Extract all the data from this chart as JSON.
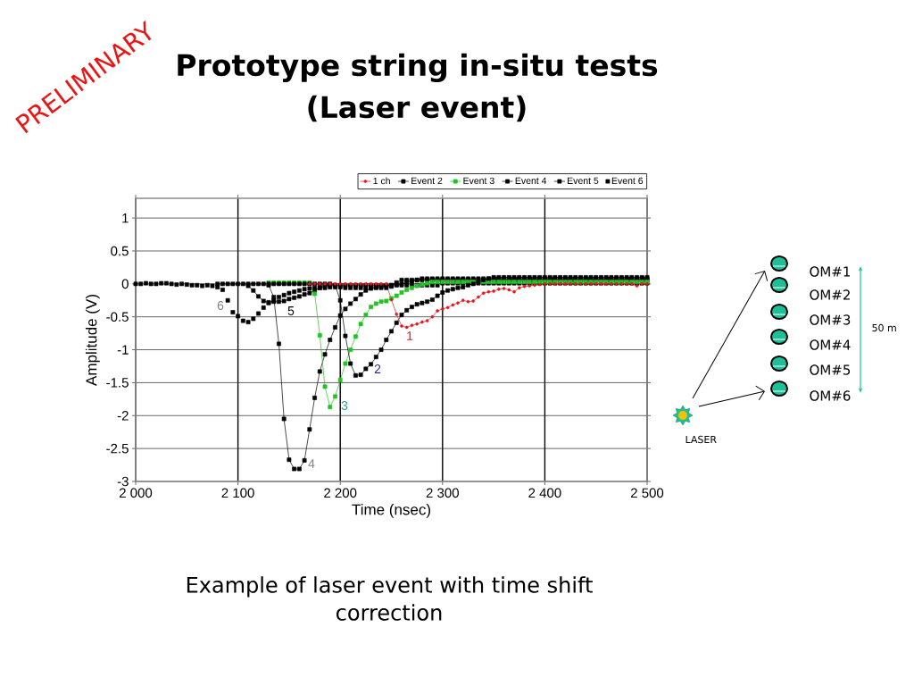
{
  "chart_data": {
    "type": "line",
    "title": "Prototype string in-situ tests (Laser event)",
    "xlabel": "Time (nsec)",
    "ylabel": "Amplitude (V)",
    "x": [
      2000,
      2005,
      2010,
      2015,
      2020,
      2025,
      2030,
      2035,
      2040,
      2045,
      2050,
      2055,
      2060,
      2065,
      2070,
      2075,
      2080,
      2085,
      2090,
      2095,
      2100,
      2105,
      2110,
      2115,
      2120,
      2125,
      2130,
      2135,
      2140,
      2145,
      2150,
      2155,
      2160,
      2165,
      2170,
      2175,
      2180,
      2185,
      2190,
      2195,
      2200,
      2205,
      2210,
      2215,
      2220,
      2225,
      2230,
      2235,
      2240,
      2245,
      2250,
      2255,
      2260,
      2265,
      2270,
      2275,
      2280,
      2285,
      2290,
      2295,
      2300,
      2305,
      2310,
      2315,
      2320,
      2325,
      2330,
      2335,
      2340,
      2345,
      2350,
      2355,
      2360,
      2365,
      2370,
      2375,
      2380,
      2385,
      2390,
      2395,
      2400,
      2405,
      2410,
      2415,
      2420,
      2425,
      2430,
      2435,
      2440,
      2445,
      2450,
      2455,
      2460,
      2465,
      2470,
      2475,
      2480,
      2485,
      2490,
      2495,
      2500
    ],
    "series": [
      {
        "name": "1 ch",
        "color": "#e8141c",
        "marker": "circle",
        "values": [
          null,
          null,
          null,
          null,
          null,
          null,
          null,
          null,
          null,
          null,
          null,
          null,
          null,
          null,
          null,
          null,
          null,
          null,
          null,
          null,
          null,
          null,
          null,
          null,
          null,
          null,
          null,
          null,
          null,
          null,
          null,
          null,
          null,
          null,
          0,
          0,
          0,
          0,
          0,
          0,
          0,
          0,
          0,
          0,
          0,
          0,
          0,
          0,
          0,
          0,
          -0.24,
          -0.46,
          -0.64,
          -0.66,
          -0.63,
          -0.61,
          -0.58,
          -0.56,
          -0.5,
          -0.41,
          -0.38,
          -0.36,
          -0.32,
          -0.29,
          -0.25,
          -0.27,
          -0.26,
          -0.2,
          -0.14,
          -0.12,
          -0.11,
          -0.08,
          -0.07,
          -0.09,
          -0.12,
          -0.06,
          -0.04,
          -0.03,
          -0.02,
          -0.01,
          0,
          0,
          0,
          0,
          0,
          0,
          0,
          0,
          0,
          0,
          0,
          0,
          0,
          0,
          0,
          0,
          0,
          0,
          -0.03,
          0,
          0
        ]
      },
      {
        "name": "Event 2",
        "color": "#000000",
        "marker": "square",
        "values": [
          null,
          null,
          null,
          null,
          null,
          null,
          null,
          null,
          null,
          null,
          null,
          null,
          null,
          null,
          null,
          null,
          0,
          0,
          0,
          0,
          0,
          0,
          0,
          0,
          0,
          0,
          0,
          0,
          0,
          0,
          0,
          0,
          0,
          0,
          0,
          0,
          0,
          0,
          0,
          -0.02,
          -0.25,
          -0.79,
          -1.21,
          -1.39,
          -1.38,
          -1.29,
          -1.22,
          -1.11,
          -1.0,
          -0.85,
          -0.72,
          -0.59,
          -0.47,
          -0.4,
          -0.35,
          -0.31,
          -0.29,
          -0.27,
          -0.24,
          -0.18,
          -0.13,
          -0.1,
          -0.08,
          -0.06,
          -0.05,
          -0.02,
          0,
          0.03,
          0.06,
          0.08,
          0.1,
          0.1,
          0.1,
          0.1,
          0.1,
          0.1,
          0.1,
          0.1,
          0.1,
          0.1,
          0.1,
          0.1,
          0.1,
          0.1,
          0.1,
          0.1,
          0.1,
          0.1,
          0.1,
          0.1,
          0.1,
          0.1,
          0.1,
          0.1,
          0.1,
          0.1,
          0.1,
          0.1,
          0.1,
          0.1,
          0.1
        ]
      },
      {
        "name": "Event 3",
        "color": "#22c322",
        "marker": "square",
        "values": [
          null,
          null,
          null,
          null,
          null,
          null,
          null,
          null,
          null,
          null,
          null,
          null,
          null,
          null,
          null,
          null,
          null,
          null,
          null,
          null,
          null,
          null,
          null,
          null,
          null,
          null,
          0.02,
          0.02,
          0.02,
          0.02,
          0.02,
          0.02,
          0.02,
          0.02,
          0.02,
          -0.15,
          -0.78,
          -1.56,
          -1.87,
          -1.71,
          -1.46,
          -1.21,
          -1.0,
          -0.8,
          -0.61,
          -0.47,
          -0.35,
          -0.3,
          -0.27,
          -0.26,
          -0.22,
          -0.18,
          -0.13,
          -0.09,
          -0.06,
          -0.03,
          -0.01,
          0.01,
          0.03,
          0.03,
          0.03,
          0.03,
          0.03,
          0.03,
          0.03,
          0.03,
          0.03,
          0.03,
          0.03,
          0.03,
          0.03,
          0.03,
          0.03,
          0.03,
          0.03,
          0.03,
          0.03,
          0.03,
          0.03,
          0.03,
          0.03,
          0.03,
          0.03,
          0.03,
          0.03,
          0.03,
          0.03,
          0.03,
          0.03,
          0.03,
          0.03,
          0.03,
          0.03,
          0.03,
          0.03,
          0.03,
          0.03,
          0.03,
          0.03,
          0.03,
          0.03
        ]
      },
      {
        "name": "Event 4",
        "color": "#000000",
        "marker": "square",
        "values": [
          null,
          null,
          null,
          null,
          null,
          null,
          null,
          null,
          null,
          null,
          null,
          null,
          null,
          null,
          null,
          null,
          null,
          null,
          null,
          null,
          null,
          null,
          null,
          null,
          null,
          null,
          -0.02,
          -0.2,
          -0.91,
          -2.05,
          -2.67,
          -2.81,
          -2.81,
          -2.68,
          -2.21,
          -1.73,
          -1.33,
          -1.07,
          -0.85,
          -0.66,
          -0.48,
          -0.38,
          -0.3,
          -0.23,
          -0.16,
          -0.1,
          -0.07,
          -0.05,
          -0.04,
          -0.03,
          -0.02,
          -0.01,
          0,
          0.02,
          0.04,
          0.06,
          0.08,
          0.08,
          0.08,
          0.08,
          0.08,
          0.08,
          0.08,
          0.08,
          0.08,
          0.08,
          0.08,
          0.08,
          0.08,
          0.08,
          0.08,
          0.08,
          0.08,
          0.08,
          0.08,
          0.08,
          0.08,
          0.08,
          0.08,
          0.08,
          0.08,
          0.08,
          0.08,
          0.08,
          0.08,
          0.08,
          0.08,
          0.08,
          0.08,
          0.08,
          0.08,
          0.08,
          0.08,
          0.08,
          0.08,
          0.08,
          0.08,
          0.08,
          0.08,
          0.08,
          0.08
        ]
      },
      {
        "name": "Event 5",
        "color": "#000000",
        "marker": "square",
        "values": [
          null,
          null,
          null,
          null,
          null,
          null,
          null,
          null,
          null,
          null,
          null,
          null,
          null,
          null,
          null,
          null,
          null,
          null,
          null,
          null,
          null,
          null,
          -0.03,
          -0.1,
          -0.19,
          -0.26,
          -0.28,
          -0.27,
          -0.27,
          -0.26,
          -0.23,
          -0.21,
          -0.19,
          -0.16,
          -0.14,
          -0.1,
          -0.06,
          -0.03,
          -0.02,
          -0.02,
          -0.02,
          -0.02,
          -0.02,
          -0.02,
          -0.02,
          -0.02,
          -0.02,
          -0.02,
          -0.02,
          -0.02,
          -0.02,
          0.02,
          0.06,
          0.06,
          0.06,
          0.06,
          0.06,
          0.06,
          0.06,
          0.06,
          0.06,
          0.06,
          0.06,
          0.06,
          0.06,
          0.06,
          0.06,
          0.06,
          0.06,
          0.06,
          0.06,
          0.06,
          0.06,
          0.06,
          0.06,
          0.06,
          0.06,
          0.06,
          0.06,
          0.06,
          0.06,
          0.06,
          0.06,
          0.06,
          0.06,
          0.06,
          0.06,
          0.06,
          0.06,
          0.06,
          0.06,
          0.06,
          0.06,
          0.06,
          0.06,
          0.06,
          0.06,
          0.06,
          0.06,
          0.06,
          0.06
        ]
      },
      {
        "name": "Event 6",
        "type": "scatter",
        "color": "#000000",
        "marker": "square",
        "values": [
          0,
          0,
          0.01,
          0,
          0,
          0.01,
          0.01,
          0,
          -0.01,
          0,
          -0.01,
          -0.02,
          -0.02,
          -0.03,
          -0.02,
          -0.03,
          -0.05,
          -0.09,
          -0.25,
          -0.43,
          -0.49,
          -0.56,
          -0.58,
          -0.53,
          -0.45,
          -0.36,
          -0.29,
          -0.25,
          -0.2,
          -0.17,
          -0.14,
          -0.12,
          -0.1,
          -0.08,
          -0.07,
          -0.06,
          -0.06,
          -0.06,
          -0.05,
          -0.05,
          -0.05,
          -0.06,
          -0.06,
          -0.06,
          -0.06,
          -0.06,
          -0.06,
          -0.06,
          -0.06,
          -0.06,
          -0.04,
          -0.02,
          -0.02,
          -0.02,
          -0.02,
          -0.02,
          -0.02,
          -0.02,
          -0.02,
          -0.02,
          0.01,
          0.01,
          0.01,
          0.01,
          0.01,
          0.01,
          0.01,
          0.01,
          0.01,
          0.01,
          0.01,
          0.01,
          0.01,
          0.01,
          0.01,
          0.01,
          0.01,
          0.01,
          0.01,
          0.01,
          0.01,
          0.01,
          0.01,
          0.01,
          0.01,
          0.01,
          0.01,
          0.01,
          0.01,
          0.01,
          0.01,
          0.01,
          0.01,
          0.01,
          0.01,
          0.01,
          0.01,
          0.01,
          0.01,
          0.01,
          0.01
        ]
      }
    ],
    "xlim": [
      2000,
      2500
    ],
    "xticks": [
      {
        "value": 2000,
        "label": "2 000"
      },
      {
        "value": 2100,
        "label": "2 100"
      },
      {
        "value": 2200,
        "label": "2 200"
      },
      {
        "value": 2300,
        "label": "2 300"
      },
      {
        "value": 2400,
        "label": "2 400"
      },
      {
        "value": 2500,
        "label": "2 500"
      }
    ],
    "ylim": [
      -3,
      1.3
    ],
    "yticks": [
      -3,
      -2.5,
      -2,
      -1.5,
      -1,
      -0.5,
      0,
      0.5,
      1
    ],
    "grid": true,
    "legend": "top right",
    "annotations": [
      "1",
      "2",
      "3",
      "4",
      "5",
      "6",
      "Example of laser event with time shift correction",
      "PRELIMINARY",
      "OM#1",
      "OM#2",
      "OM#3",
      "OM#4",
      "OM#5",
      "OM#6",
      "50 m",
      "LASER"
    ]
  }
}
